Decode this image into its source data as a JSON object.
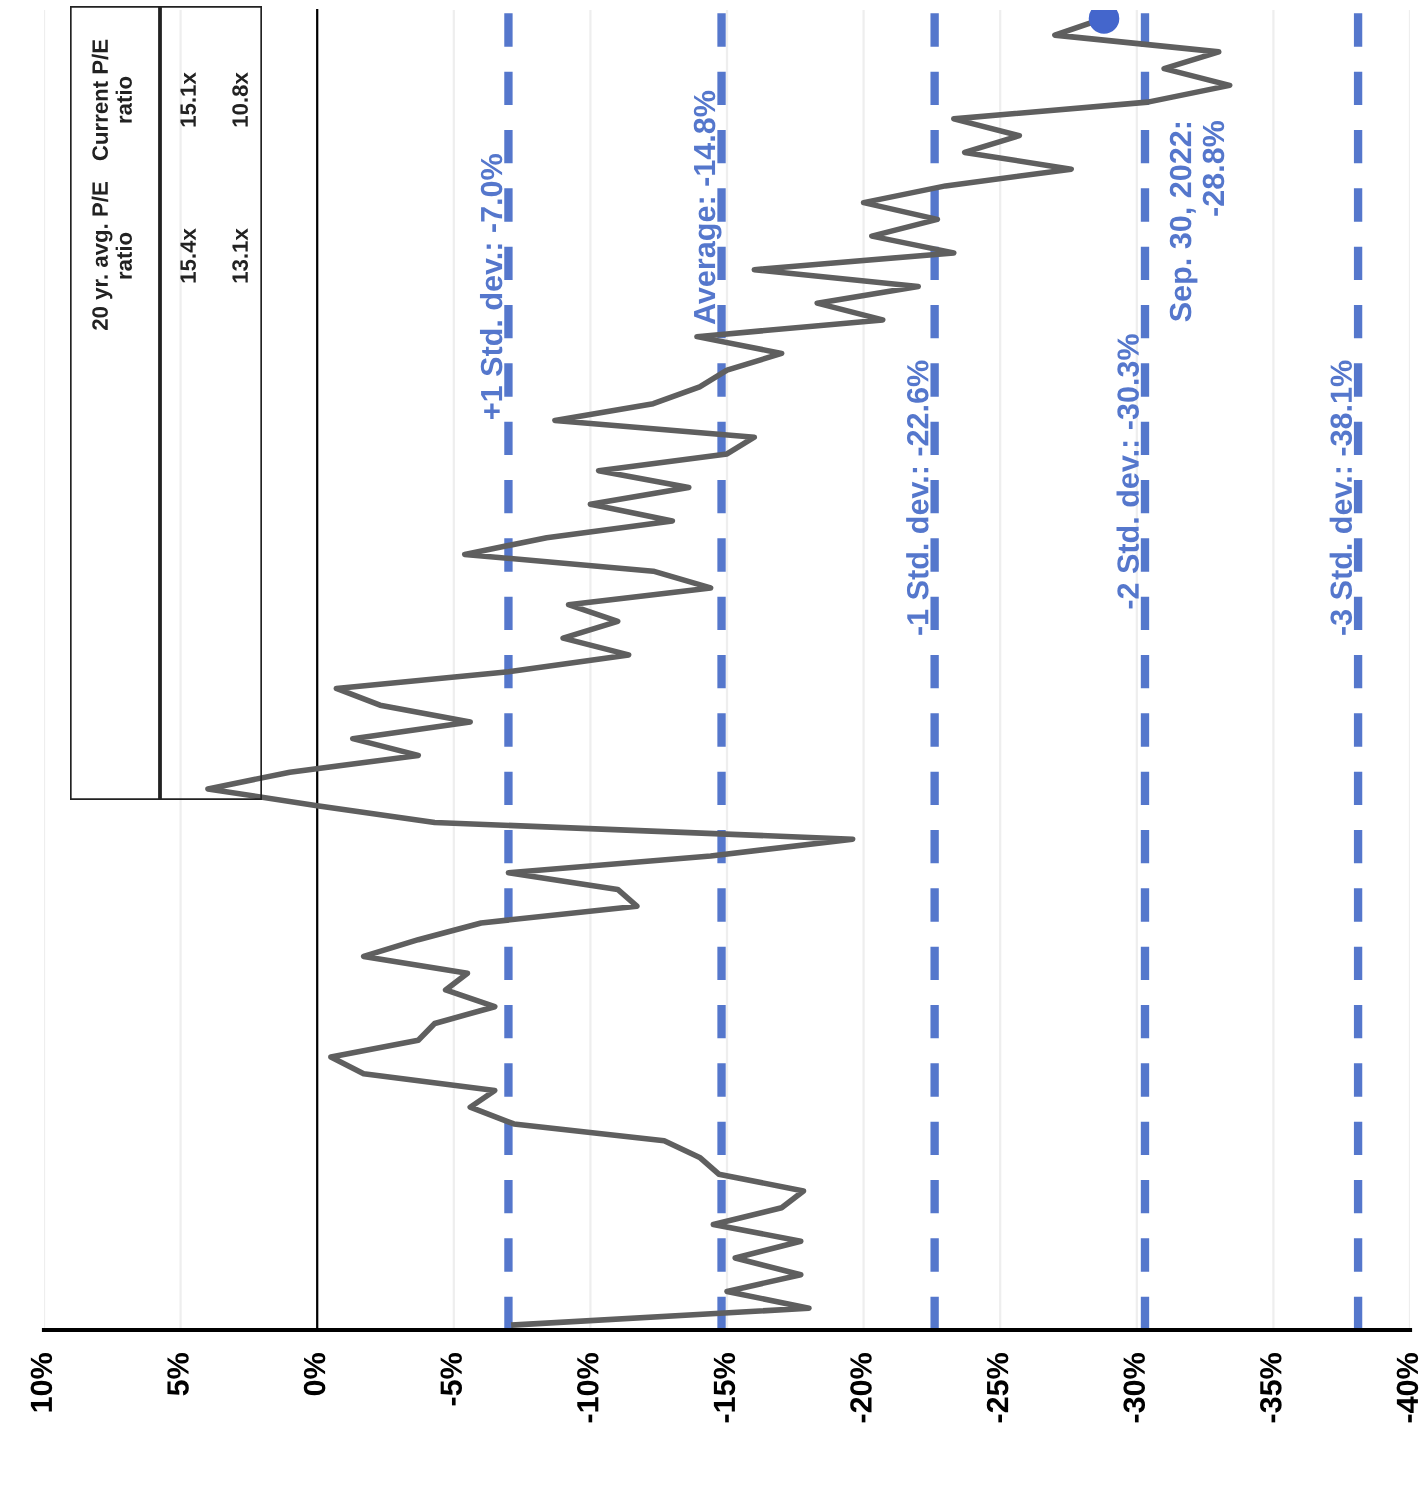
{
  "chart_data": {
    "type": "line",
    "orientation": "horizontal",
    "categories": [
      null,
      null,
      null,
      null,
      null,
      null,
      null,
      null,
      null,
      null,
      null,
      null,
      null,
      null,
      null,
      null,
      null,
      null,
      null,
      null,
      null,
      null,
      null,
      null,
      null,
      null,
      null,
      null,
      null,
      null,
      null,
      null,
      null,
      null,
      null,
      null,
      null,
      null,
      null,
      null,
      null,
      null,
      null,
      null,
      null,
      null,
      null,
      null,
      null,
      null,
      null,
      null,
      null,
      null,
      null,
      null,
      null,
      null,
      null,
      null,
      null,
      null,
      null,
      null,
      null,
      null,
      null,
      null,
      null,
      null,
      null,
      null,
      null,
      null,
      null,
      null,
      null,
      null,
      null
    ],
    "series": [
      {
        "color": "#5f5f5f",
        "marker": "none",
        "values": [
          -28.8,
          -27.0,
          -33.0,
          -31.0,
          -33.4,
          -30.4,
          -23.3,
          -25.7,
          -23.7,
          -27.6,
          -23.0,
          -20.0,
          -22.7,
          -20.3,
          -23.3,
          -16.0,
          -22.0,
          -18.3,
          -20.7,
          -13.9,
          -17.0,
          -15.0,
          -14.0,
          -12.3,
          -8.7,
          -16.0,
          -15.0,
          -10.3,
          -13.6,
          -10.0,
          -13.0,
          -8.4,
          -5.4,
          -12.3,
          -14.4,
          -9.2,
          -11.0,
          -9.0,
          -11.4,
          -7.0,
          -0.7,
          -2.3,
          -5.6,
          -1.3,
          -3.7,
          1.0,
          4.0,
          0,
          -4.3,
          -19.6,
          -14.4,
          -7.0,
          -11.0,
          -11.7,
          -6.0,
          -3.7,
          -1.7,
          -5.5,
          -4.7,
          -6.5,
          -4.3,
          -3.7,
          -0.5,
          -1.7,
          -6.5,
          -5.6,
          -7.2,
          -12.7,
          -14.0,
          -14.7,
          -17.8,
          -17.0,
          -14.5,
          -17.7,
          -15.3,
          -17.7,
          -15.0,
          -18.0,
          -7.2
        ]
      },
      {
        "type": "scatter",
        "marker": "circle",
        "color": "#4466cc",
        "values": [
          -28.8,
          null,
          null,
          null,
          null,
          null,
          null,
          null,
          null,
          null,
          null,
          null,
          null,
          null,
          null,
          null,
          null,
          null,
          null,
          null,
          null,
          null,
          null,
          null,
          null,
          null,
          null,
          null,
          null,
          null,
          null,
          null,
          null,
          null,
          null,
          null,
          null,
          null,
          null,
          null,
          null,
          null,
          null,
          null,
          null,
          null,
          null,
          null,
          null,
          null,
          null,
          null,
          null,
          null,
          null,
          null,
          null,
          null,
          null,
          null,
          null,
          null,
          null,
          null,
          null,
          null,
          null,
          null,
          null,
          null,
          null,
          null,
          null,
          null,
          null,
          null,
          null,
          null,
          null
        ]
      }
    ],
    "xlim": [
      10,
      -40
    ],
    "xticks": [
      {
        "value": 10,
        "label": "10%"
      },
      {
        "value": 5,
        "label": "5%"
      },
      {
        "value": 0,
        "label": "0%"
      },
      {
        "value": -5,
        "label": "-5%"
      },
      {
        "value": -10,
        "label": "-10%"
      },
      {
        "value": -15,
        "label": "-15%"
      },
      {
        "value": -20,
        "label": "-20%"
      },
      {
        "value": -25,
        "label": "-25%"
      },
      {
        "value": -30,
        "label": "-30%"
      },
      {
        "value": -35,
        "label": "-35%"
      },
      {
        "value": -40,
        "label": "-40%"
      }
    ],
    "grid": "x",
    "line_style": "solid",
    "legend": false,
    "ref_lines": [
      {
        "axis": "x",
        "value": -7.0,
        "label": "+1 Std. dev.: -7.0%",
        "color": "#5577cc",
        "line_style": "dashed"
      },
      {
        "axis": "x",
        "value": -14.8,
        "label": "Average: -14.8%",
        "color": "#5577cc",
        "line_style": "dashed"
      },
      {
        "axis": "x",
        "value": -22.6,
        "label": "-1 Std. dev.: -22.6%",
        "color": "#5577cc",
        "line_style": "dashed"
      },
      {
        "axis": "x",
        "value": -30.3,
        "label": "-2 Std. dev.: -30.3%",
        "color": "#5577cc",
        "line_style": "dashed"
      },
      {
        "axis": "x",
        "value": -38.1,
        "label": "-3 Std. dev.: -38.1%",
        "color": "#5577cc",
        "line_style": "dashed"
      }
    ],
    "annotations": [
      "20 yr. avg. P/E\nratio",
      "Current P/E\nratio",
      "15.4x",
      "15.1x",
      "13.1x",
      "10.8x",
      "Sep. 30, 2022:\n-28.8%"
    ]
  }
}
